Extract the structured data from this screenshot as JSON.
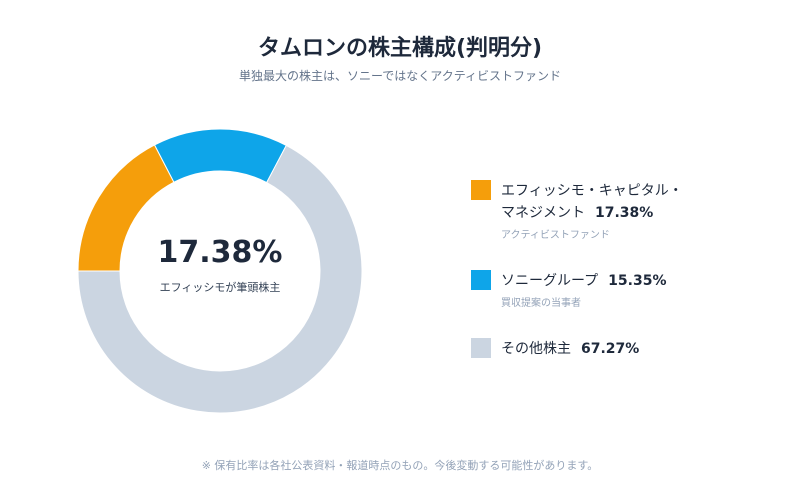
{
  "header": {
    "title": "タムロンの株主構成(判明分)",
    "subtitle": "単独最大の株主は、ソニーではなくアクティビストファンド"
  },
  "center": {
    "value": "17.38%",
    "caption": "エフィッシモが筆頭株主"
  },
  "legend": [
    {
      "line1": "エフィッシモ・キャピタル・",
      "line2": "マネジメント",
      "pct": "17.38%",
      "note": "アクティビストファンド",
      "color": "#f59e0b"
    },
    {
      "line1": "ソニーグループ",
      "line2": "",
      "pct": "15.35%",
      "note": "買収提案の当事者",
      "color": "#0ea5e9"
    },
    {
      "line1": "その他株主",
      "line2": "",
      "pct": "67.27%",
      "note": "",
      "color": "#cbd5e1"
    }
  ],
  "footnote": "※ 保有比率は各社公表資料・報道時点のもの。今後変動する可能性があります。",
  "chart_data": {
    "type": "pie",
    "categories": [
      "エフィッシモ・キャピタル・マネジメント",
      "ソニーグループ",
      "その他株主"
    ],
    "values": [
      17.38,
      15.35,
      67.27
    ],
    "colors": [
      "#f59e0b",
      "#0ea5e9",
      "#cbd5e1"
    ],
    "title": "タムロンの株主構成(判明分)",
    "donut": true,
    "legend_position": "right"
  }
}
